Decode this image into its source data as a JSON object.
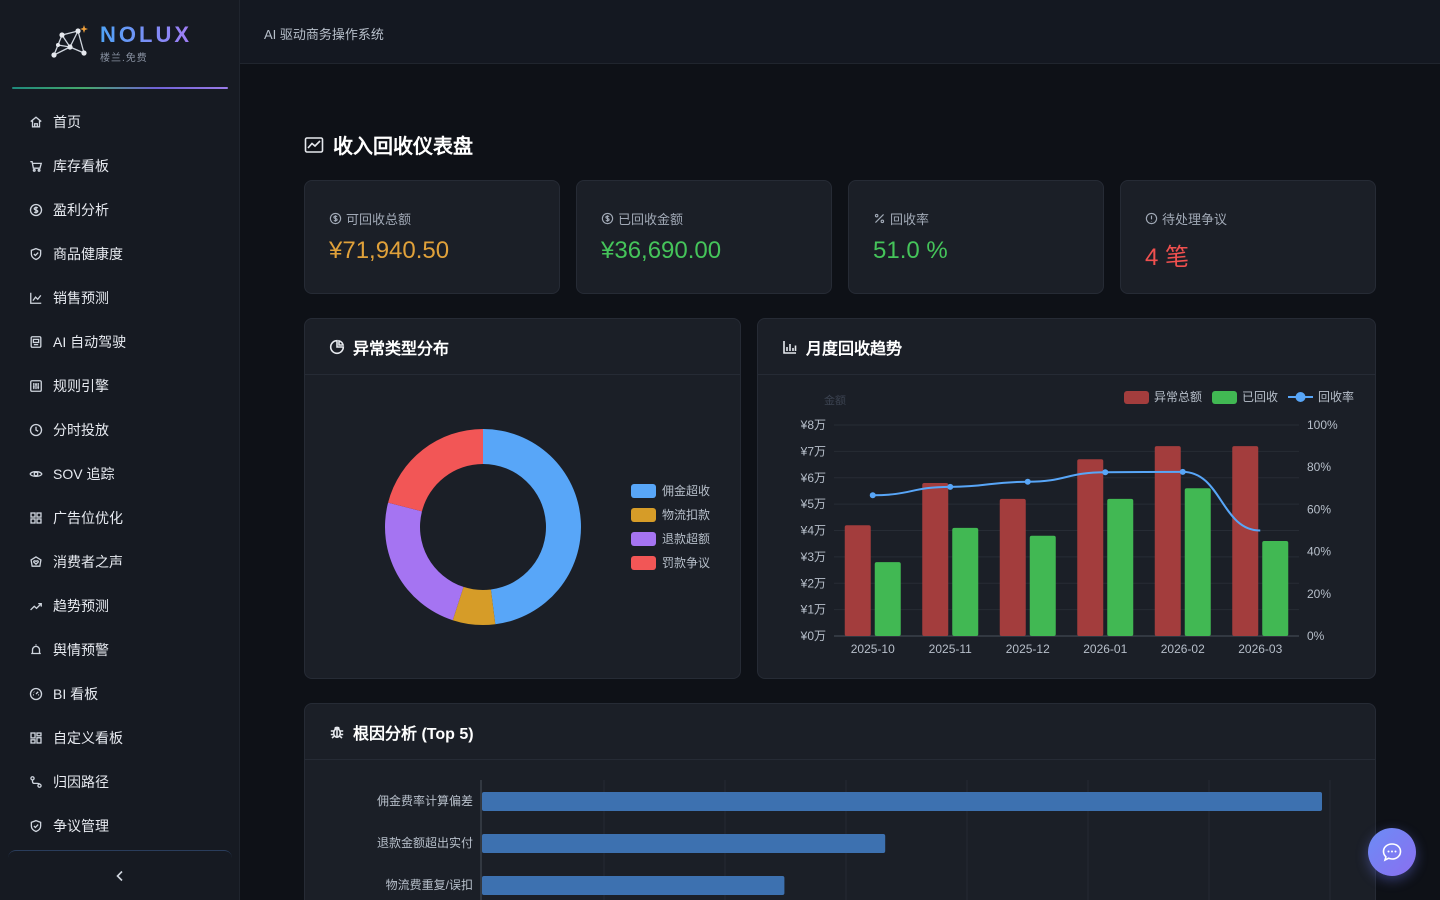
{
  "brand": {
    "title": "NOLUX",
    "subtitle": "楼兰.免费"
  },
  "topbar": {
    "title": "AI 驱动商务操作系统"
  },
  "sidebar": {
    "items": [
      {
        "label": "首页",
        "icon": "home-icon"
      },
      {
        "label": "库存看板",
        "icon": "cart-icon"
      },
      {
        "label": "盈利分析",
        "icon": "dollar-circle-icon"
      },
      {
        "label": "商品健康度",
        "icon": "shield-check-icon"
      },
      {
        "label": "销售预测",
        "icon": "line-chart-icon"
      },
      {
        "label": "AI 自动驾驶",
        "icon": "robot-icon"
      },
      {
        "label": "规则引擎",
        "icon": "sliders-icon"
      },
      {
        "label": "分时投放",
        "icon": "clock-icon"
      },
      {
        "label": "SOV 追踪",
        "icon": "eye-icon"
      },
      {
        "label": "广告位优化",
        "icon": "grid-icon"
      },
      {
        "label": "消费者之声",
        "icon": "heart-hand-icon"
      },
      {
        "label": "趋势预测",
        "icon": "trend-up-icon"
      },
      {
        "label": "舆情预警",
        "icon": "alarm-icon"
      },
      {
        "label": "BI 看板",
        "icon": "dashboard-icon"
      },
      {
        "label": "自定义看板",
        "icon": "layout-icon"
      },
      {
        "label": "归因路径",
        "icon": "path-icon"
      },
      {
        "label": "争议管理",
        "icon": "shield-icon"
      }
    ]
  },
  "page": {
    "title": "收入回收仪表盘"
  },
  "stats": [
    {
      "label": "可回收总额",
      "value": "¥71,940.50",
      "color": "#e0a13a",
      "icon": "dollar-circle-icon"
    },
    {
      "label": "已回收金额",
      "value": "¥36,690.00",
      "color": "#45c45a",
      "icon": "dollar-circle-icon"
    },
    {
      "label": "回收率",
      "value": "51.0 %",
      "color": "#45c45a",
      "icon": "percent-icon"
    },
    {
      "label": "待处理争议",
      "value": "4 笔",
      "color": "#f0504f",
      "icon": "alert-circle-icon"
    }
  ],
  "panels": {
    "anomaly_title": "异常类型分布",
    "trend_title": "月度回收趋势",
    "root_title": "根因分析 (Top 5)"
  },
  "chart_data": [
    {
      "type": "pie",
      "title": "异常类型分布",
      "donut": true,
      "categories": [
        "佣金超收",
        "物流扣款",
        "退款超额",
        "罚款争议"
      ],
      "values": [
        48,
        7,
        24,
        21
      ],
      "colors": [
        "#58a6f8",
        "#d69c28",
        "#a574f2",
        "#f25656"
      ],
      "legend": "right"
    },
    {
      "type": "bar",
      "title": "月度回收趋势",
      "categories": [
        "2025-10",
        "2025-11",
        "2025-12",
        "2026-01",
        "2026-02",
        "2026-03"
      ],
      "series": [
        {
          "name": "异常总额",
          "values": [
            4.2,
            5.8,
            5.2,
            6.7,
            7.2,
            7.2
          ],
          "color": "#a33d3d"
        },
        {
          "name": "已回收",
          "values": [
            2.8,
            4.1,
            3.8,
            5.2,
            5.6,
            3.6
          ],
          "color": "#41b853"
        },
        {
          "name": "回收率",
          "type": "line",
          "axis": "right",
          "values": [
            66.7,
            70.7,
            73.1,
            77.6,
            77.8,
            50.0
          ],
          "color": "#58a6f8"
        }
      ],
      "ylabel": "金额",
      "y_ticks": [
        "¥0万",
        "¥1万",
        "¥2万",
        "¥3万",
        "¥4万",
        "¥5万",
        "¥6万",
        "¥7万",
        "¥8万"
      ],
      "ylim": [
        0,
        8
      ],
      "y2_ticks": [
        "0%",
        "20%",
        "40%",
        "60%",
        "80%",
        "100%"
      ],
      "y2lim": [
        0,
        100
      ],
      "legend": "top-right"
    },
    {
      "type": "bar",
      "orientation": "horizontal",
      "title": "根因分析 (Top 5)",
      "categories": [
        "佣金费率计算偏差",
        "退款金额超出实付",
        "物流费重复/误扣"
      ],
      "values": [
        100,
        48,
        36
      ],
      "color": "#3d71b0"
    }
  ]
}
